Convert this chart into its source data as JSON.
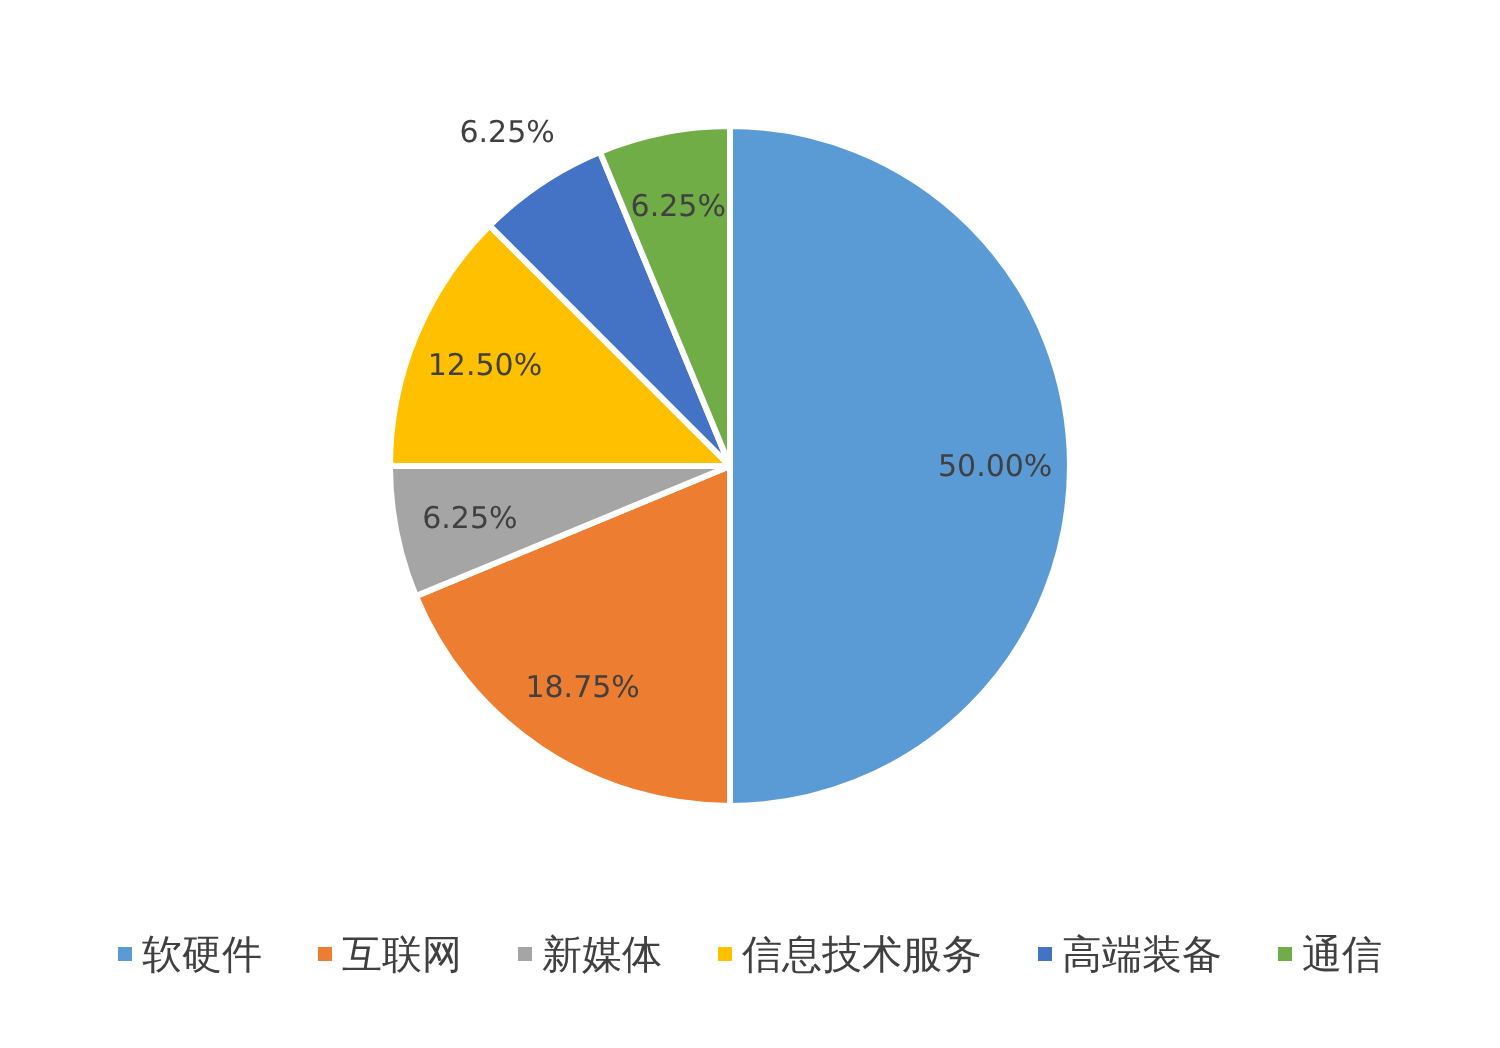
{
  "chart_data": {
    "type": "pie",
    "categories": [
      "软硬件",
      "互联网",
      "新媒体",
      "信息技术服务",
      "高端装备",
      "通信"
    ],
    "values": [
      50,
      18.75,
      6.25,
      12.5,
      6.25,
      6.25
    ],
    "colors": [
      "#5b9bd5",
      "#ed7d31",
      "#a5a5a5",
      "#ffc000",
      "#4472c4",
      "#70ad47"
    ],
    "value_labels": [
      "50.00%",
      "18.75%",
      "6.25%",
      "12.50%",
      "6.25%",
      "6.25%"
    ],
    "legend": "bottom"
  }
}
